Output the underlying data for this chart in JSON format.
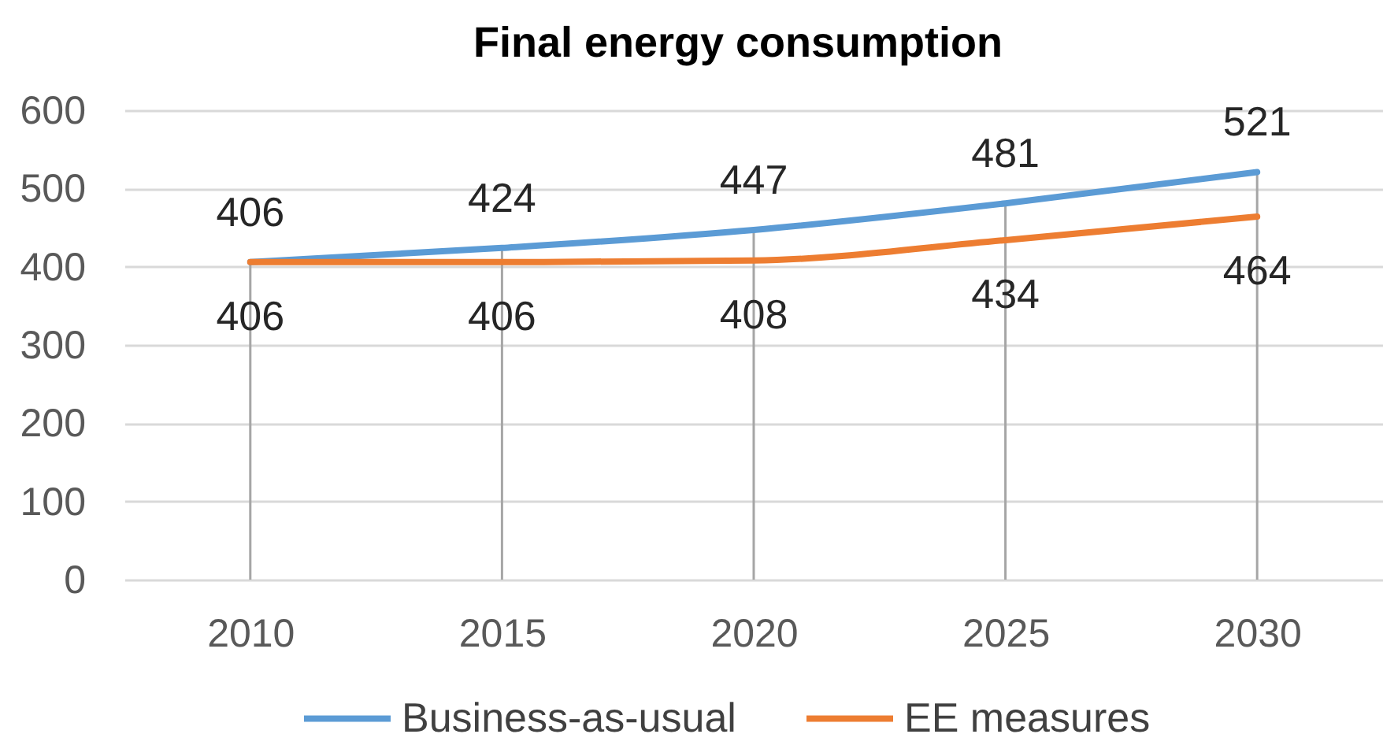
{
  "chart_data": {
    "type": "line",
    "title": "Final energy consumption",
    "categories": [
      "2010",
      "2015",
      "2020",
      "2025",
      "2030"
    ],
    "series": [
      {
        "name": "Business-as-usual",
        "color": "#5b9bd5",
        "values": [
          406,
          424,
          447,
          481,
          521
        ]
      },
      {
        "name": "EE measures",
        "color": "#ed7d31",
        "values": [
          406,
          406,
          408,
          434,
          464
        ]
      }
    ],
    "ylim": [
      0,
      600
    ],
    "yticks": [
      0,
      100,
      200,
      300,
      400,
      500,
      600
    ],
    "grid": true,
    "legend": "bottom",
    "data_labels": true
  }
}
